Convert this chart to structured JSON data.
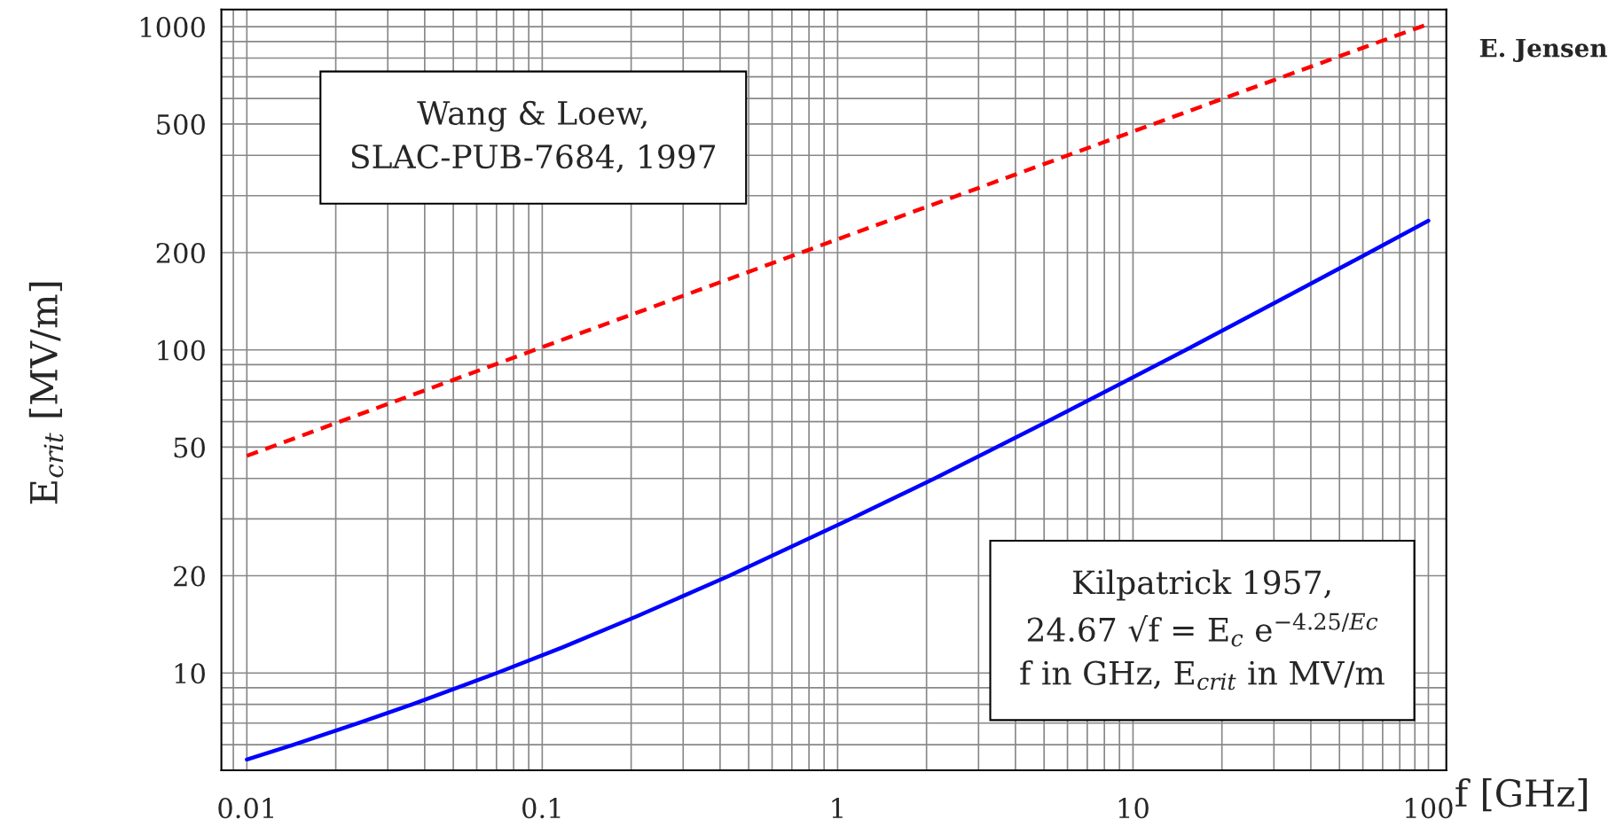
{
  "chart_data": {
    "type": "line",
    "xlabel": "f [GHz]",
    "ylabel": "E$_{crit}$ [MV/m]",
    "log": "xy",
    "grid": true,
    "xlim": [
      0.0082,
      115
    ],
    "xticks": [
      0.01,
      0.1,
      1,
      10,
      100
    ],
    "ylim": [
      5,
      1130
    ],
    "yticks": [
      10,
      20,
      50,
      100,
      200,
      500,
      1000
    ],
    "series": [
      {
        "color": "#ff0000",
        "line_style": "dashed",
        "x": [
          0.01,
          0.03,
          0.1,
          0.3,
          1,
          3,
          10,
          30,
          100
        ],
        "values": [
          47,
          68,
          102,
          147,
          220,
          317,
          474,
          684,
          1020
        ]
      },
      {
        "color": "#0000ff",
        "line_style": "solid",
        "x": [
          0.01,
          0.0144,
          0.0239,
          0.0363,
          0.0702,
          0.117,
          0.21,
          0.43,
          1.11,
          2.13,
          5.13,
          15.1,
          34.9,
          63,
          100
        ],
        "values": [
          5.4,
          6,
          7,
          8,
          10,
          12,
          15,
          20,
          30,
          40,
          60,
          100,
          150,
          200,
          251
        ]
      }
    ],
    "annotations": [
      "Wang & Loew,\nSLAC-PUB-7684, 1997",
      "Kilpatrick 1957,\n24.67 √f = E$_{c}$ e$^{−4.25/Ec}$\nf in GHz, E$_{crit}$ in MV/m",
      "E. Jensen"
    ]
  }
}
